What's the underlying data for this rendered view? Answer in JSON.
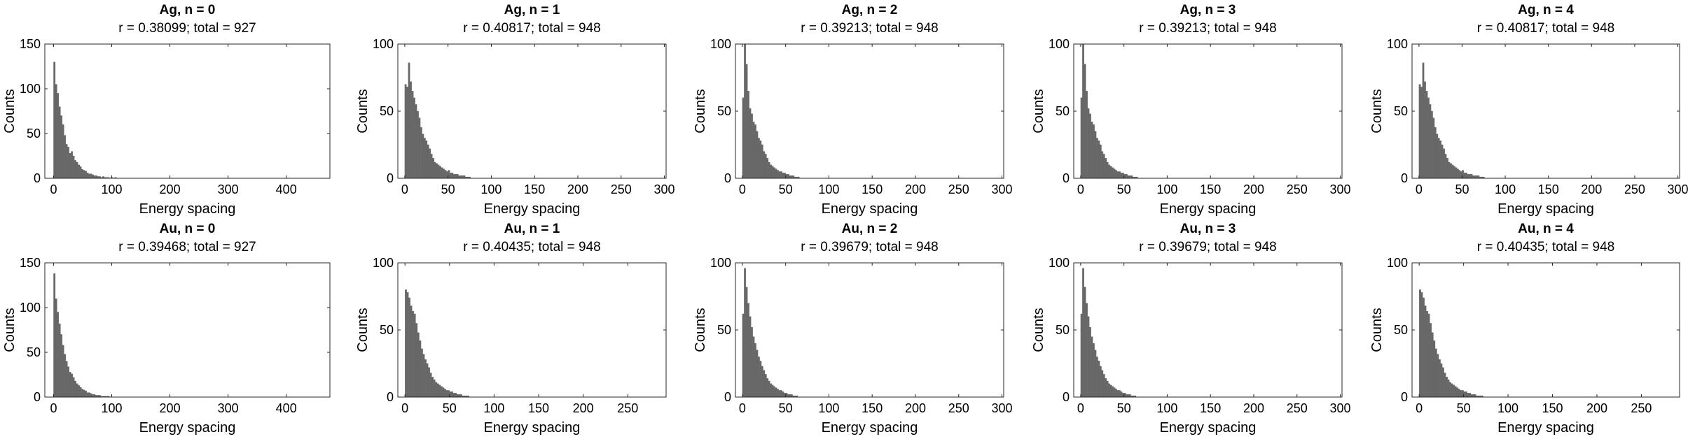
{
  "colors": {
    "bar": "#676767",
    "axis": "#262626",
    "background": "#ffffff"
  },
  "chart_data": [
    {
      "type": "bar",
      "title": "Ag, n = 0",
      "subtitle": "r = 0.38099; total = 927",
      "xlabel": "Energy spacing",
      "ylabel": "Counts",
      "xlim": [
        -15,
        475
      ],
      "ylim": [
        0,
        150
      ],
      "xticks": [
        0,
        100,
        200,
        300,
        400
      ],
      "yticks": [
        0,
        50,
        100,
        150
      ],
      "bin_width": 3,
      "x_start": 0,
      "values": [
        130,
        105,
        95,
        80,
        70,
        60,
        48,
        38,
        35,
        28,
        30,
        25,
        20,
        18,
        15,
        13,
        10,
        9,
        8,
        6,
        5,
        5,
        4,
        3,
        3,
        2,
        2,
        1,
        2,
        1,
        1,
        1,
        0,
        1,
        0,
        1
      ]
    },
    {
      "type": "bar",
      "title": "Ag, n = 1",
      "subtitle": "r = 0.40817; total = 948",
      "xlabel": "Energy spacing",
      "ylabel": "Counts",
      "xlim": [
        -8,
        302
      ],
      "ylim": [
        0,
        100
      ],
      "xticks": [
        0,
        50,
        100,
        150,
        200,
        250,
        300
      ],
      "yticks": [
        0,
        50,
        100
      ],
      "bin_width": 2,
      "x_start": 0,
      "values": [
        70,
        68,
        86,
        72,
        65,
        60,
        55,
        50,
        45,
        38,
        33,
        30,
        28,
        25,
        22,
        18,
        15,
        12,
        11,
        10,
        9,
        8,
        7,
        6,
        5,
        6,
        4,
        4,
        3,
        3,
        3,
        2,
        2,
        2,
        2,
        1,
        1,
        1
      ]
    },
    {
      "type": "bar",
      "title": "Ag, n = 2",
      "subtitle": "r = 0.39213; total = 948",
      "xlabel": "Energy spacing",
      "ylabel": "Counts",
      "xlim": [
        -8,
        302
      ],
      "ylim": [
        0,
        100
      ],
      "xticks": [
        0,
        50,
        100,
        150,
        200,
        250,
        300
      ],
      "yticks": [
        0,
        50,
        100
      ],
      "bin_width": 2,
      "x_start": 0,
      "values": [
        60,
        100,
        85,
        65,
        52,
        48,
        42,
        40,
        35,
        30,
        28,
        25,
        20,
        18,
        15,
        12,
        10,
        9,
        8,
        7,
        6,
        5,
        5,
        4,
        4,
        3,
        3,
        2,
        2,
        2,
        1,
        1,
        1
      ]
    },
    {
      "type": "bar",
      "title": "Ag, n = 3",
      "subtitle": "r = 0.39213; total = 948",
      "xlabel": "Energy spacing",
      "ylabel": "Counts",
      "xlim": [
        -8,
        302
      ],
      "ylim": [
        0,
        100
      ],
      "xticks": [
        0,
        50,
        100,
        150,
        200,
        250,
        300
      ],
      "yticks": [
        0,
        50,
        100
      ],
      "bin_width": 2,
      "x_start": 0,
      "values": [
        60,
        100,
        85,
        65,
        52,
        48,
        42,
        40,
        35,
        30,
        28,
        25,
        20,
        18,
        15,
        12,
        10,
        9,
        8,
        7,
        6,
        5,
        5,
        4,
        4,
        3,
        3,
        2,
        2,
        2,
        1,
        1,
        1
      ]
    },
    {
      "type": "bar",
      "title": "Ag, n = 4",
      "subtitle": "r = 0.40817; total = 948",
      "xlabel": "Energy spacing",
      "ylabel": "Counts",
      "xlim": [
        -8,
        302
      ],
      "ylim": [
        0,
        100
      ],
      "xticks": [
        0,
        50,
        100,
        150,
        200,
        250,
        300
      ],
      "yticks": [
        0,
        50,
        100
      ],
      "bin_width": 2,
      "x_start": 0,
      "values": [
        70,
        68,
        86,
        72,
        65,
        60,
        55,
        50,
        45,
        38,
        33,
        30,
        28,
        25,
        22,
        18,
        15,
        12,
        11,
        10,
        9,
        8,
        7,
        6,
        5,
        6,
        4,
        4,
        3,
        3,
        3,
        2,
        2,
        2,
        2,
        1,
        1,
        1
      ]
    },
    {
      "type": "bar",
      "title": "Au, n = 0",
      "subtitle": "r = 0.39468; total = 927",
      "xlabel": "Energy spacing",
      "ylabel": "Counts",
      "xlim": [
        -15,
        475
      ],
      "ylim": [
        0,
        150
      ],
      "xticks": [
        0,
        100,
        200,
        300,
        400
      ],
      "yticks": [
        0,
        50,
        100,
        150
      ],
      "bin_width": 3,
      "x_start": 0,
      "values": [
        138,
        110,
        95,
        82,
        70,
        58,
        48,
        40,
        34,
        28,
        26,
        22,
        18,
        15,
        13,
        11,
        9,
        8,
        7,
        5,
        5,
        4,
        3,
        3,
        2,
        2,
        2,
        1,
        1,
        1,
        1,
        1
      ]
    },
    {
      "type": "bar",
      "title": "Au, n = 1",
      "subtitle": "r = 0.40435; total = 948",
      "xlabel": "Energy spacing",
      "ylabel": "Counts",
      "xlim": [
        -8,
        293
      ],
      "ylim": [
        0,
        100
      ],
      "xticks": [
        0,
        50,
        100,
        150,
        200,
        250
      ],
      "yticks": [
        0,
        50,
        100
      ],
      "bin_width": 2,
      "x_start": 0,
      "values": [
        80,
        78,
        74,
        68,
        64,
        62,
        55,
        48,
        42,
        36,
        32,
        28,
        25,
        22,
        18,
        15,
        13,
        11,
        10,
        9,
        8,
        7,
        6,
        5,
        5,
        4,
        4,
        3,
        3,
        2,
        2,
        2,
        1,
        1,
        1,
        1
      ]
    },
    {
      "type": "bar",
      "title": "Au, n = 2",
      "subtitle": "r = 0.39679; total = 948",
      "xlabel": "Energy spacing",
      "ylabel": "Counts",
      "xlim": [
        -8,
        302
      ],
      "ylim": [
        0,
        100
      ],
      "xticks": [
        0,
        50,
        100,
        150,
        200,
        250,
        300
      ],
      "yticks": [
        0,
        50,
        100
      ],
      "bin_width": 2,
      "x_start": 0,
      "values": [
        62,
        96,
        82,
        70,
        60,
        52,
        45,
        40,
        35,
        30,
        27,
        23,
        20,
        17,
        14,
        12,
        10,
        9,
        8,
        7,
        6,
        5,
        5,
        4,
        3,
        3,
        2,
        2,
        2,
        1,
        1,
        1
      ]
    },
    {
      "type": "bar",
      "title": "Au, n = 3",
      "subtitle": "r = 0.39679; total = 948",
      "xlabel": "Energy spacing",
      "ylabel": "Counts",
      "xlim": [
        -8,
        302
      ],
      "ylim": [
        0,
        100
      ],
      "xticks": [
        0,
        50,
        100,
        150,
        200,
        250,
        300
      ],
      "yticks": [
        0,
        50,
        100
      ],
      "bin_width": 2,
      "x_start": 0,
      "values": [
        62,
        96,
        82,
        70,
        60,
        52,
        45,
        40,
        35,
        30,
        27,
        23,
        20,
        17,
        14,
        12,
        10,
        9,
        8,
        7,
        6,
        5,
        5,
        4,
        3,
        3,
        2,
        2,
        2,
        1,
        1,
        1
      ]
    },
    {
      "type": "bar",
      "title": "Au, n = 4",
      "subtitle": "r = 0.40435; total = 948",
      "xlabel": "Energy spacing",
      "ylabel": "Counts",
      "xlim": [
        -8,
        293
      ],
      "ylim": [
        0,
        100
      ],
      "xticks": [
        0,
        50,
        100,
        150,
        200,
        250
      ],
      "yticks": [
        0,
        50,
        100
      ],
      "bin_width": 2,
      "x_start": 0,
      "values": [
        80,
        78,
        74,
        68,
        64,
        62,
        55,
        48,
        42,
        36,
        32,
        28,
        25,
        22,
        18,
        15,
        13,
        11,
        10,
        9,
        8,
        7,
        6,
        5,
        5,
        4,
        4,
        3,
        3,
        2,
        2,
        2,
        1,
        1,
        1,
        1
      ]
    }
  ]
}
